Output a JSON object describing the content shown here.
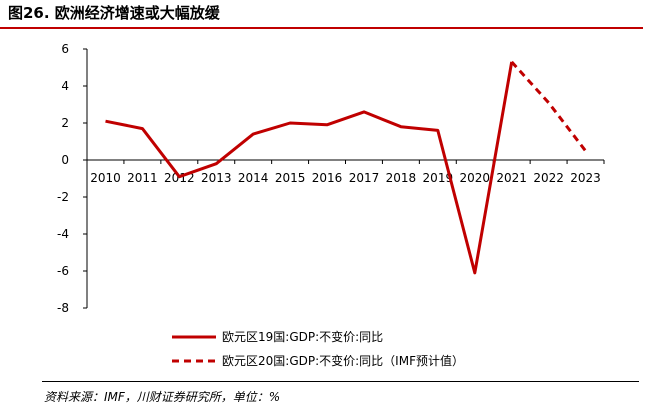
{
  "figure": {
    "title": "图26. 欧洲经济增速或大幅放缓",
    "source": "资料来源：IMF，川财证券研究所，单位：%"
  },
  "colors": {
    "series": "#c00000",
    "accent_rule": "#c00000",
    "axis": "#000000"
  },
  "chart_data": {
    "type": "line",
    "x": [
      "2010",
      "2011",
      "2012",
      "2013",
      "2014",
      "2015",
      "2016",
      "2017",
      "2018",
      "2019",
      "2020",
      "2021",
      "2022",
      "2023"
    ],
    "ylim": [
      -8,
      6
    ],
    "yticks": [
      6,
      4,
      2,
      0,
      -2,
      -4,
      -6,
      -8
    ],
    "grid": false,
    "legend_position": "bottom",
    "series": [
      {
        "name": "欧元区19国:GDP:不变价:同比",
        "style": "solid",
        "x": [
          "2010",
          "2011",
          "2012",
          "2013",
          "2014",
          "2015",
          "2016",
          "2017",
          "2018",
          "2019",
          "2020",
          "2021"
        ],
        "values": [
          2.1,
          1.7,
          -0.9,
          -0.2,
          1.4,
          2.0,
          1.9,
          2.6,
          1.8,
          1.6,
          -6.1,
          5.3
        ]
      },
      {
        "name": "欧元区20国:GDP:不变价:同比（IMF预计值）",
        "style": "dashed",
        "x": [
          "2021",
          "2022",
          "2023"
        ],
        "values": [
          5.3,
          3.1,
          0.5
        ]
      }
    ]
  }
}
